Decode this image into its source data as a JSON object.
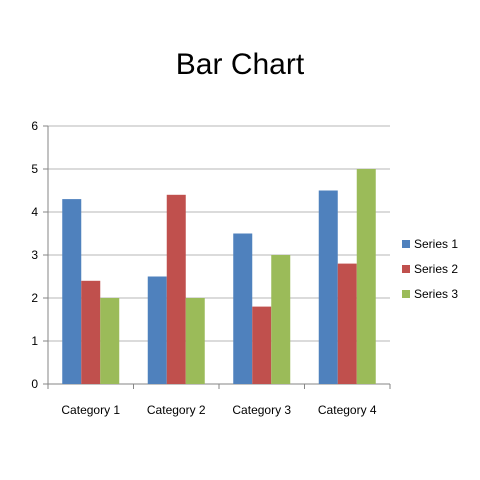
{
  "chart_data": {
    "type": "bar",
    "title": "Bar Chart",
    "xlabel": "",
    "ylabel": "",
    "categories": [
      "Category 1",
      "Category 2",
      "Category 3",
      "Category 4"
    ],
    "series": [
      {
        "name": "Series 1",
        "color": "#4F81BD",
        "values": [
          4.3,
          2.5,
          3.5,
          4.5
        ]
      },
      {
        "name": "Series 2",
        "color": "#C0504D",
        "values": [
          2.4,
          4.4,
          1.8,
          2.8
        ]
      },
      {
        "name": "Series 3",
        "color": "#9BBB59",
        "values": [
          2,
          2,
          3,
          5
        ]
      }
    ],
    "ylim": [
      0,
      6
    ],
    "yticks": [
      "0",
      "1",
      "2",
      "3",
      "4",
      "5",
      "6"
    ],
    "grid": true,
    "legend_position": "right"
  }
}
